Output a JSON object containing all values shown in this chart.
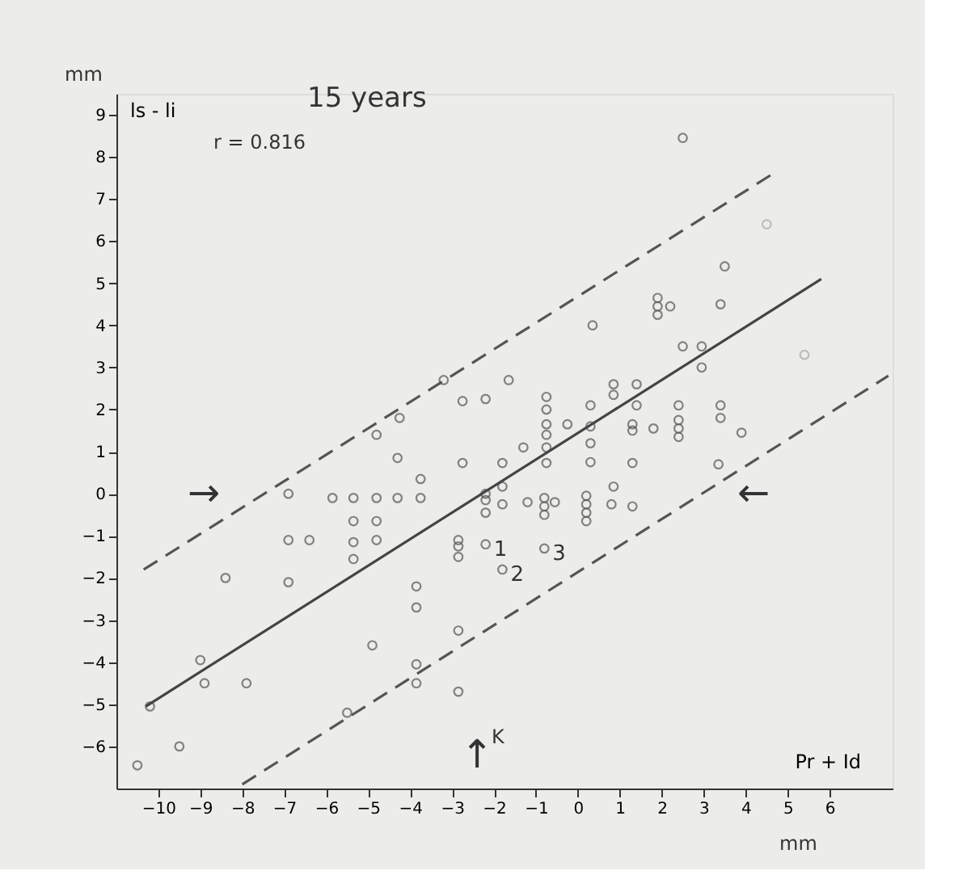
{
  "chart_data": {
    "type": "scatter",
    "title": "15 years",
    "xlabel": "Pr + Id",
    "ylabel": "ls - li",
    "xlim": [
      -11,
      7.5
    ],
    "ylim": [
      -7,
      9.5
    ],
    "xticks": [
      -10,
      -9,
      -8,
      -7,
      -6,
      -5,
      -4,
      -3,
      -2,
      -1,
      0,
      1,
      2,
      3,
      4,
      5,
      6
    ],
    "yticks": [
      -6,
      -5,
      -4,
      -3,
      -2,
      -1,
      0,
      1,
      2,
      3,
      4,
      5,
      6,
      7,
      8,
      9
    ],
    "grid": false,
    "series": [
      {
        "type": "scatter",
        "marker": "circle",
        "color": "#555555",
        "x": [
          -10.5,
          -9.5,
          -10.2,
          -9.0,
          -8.9,
          -7.9,
          -8.4,
          -6.9,
          -6.9,
          -6.9,
          -6.4,
          -5.85,
          -5.35,
          -4.8,
          -4.3,
          -3.75,
          -5.35,
          -5.35,
          -5.35,
          -4.8,
          -4.8,
          -4.3,
          -3.75,
          -4.8,
          -4.25,
          -4.9,
          -3.85,
          -3.85,
          -3.85,
          -3.85,
          -5.5,
          -2.85,
          -2.85,
          -2.85,
          -2.85,
          -2.85,
          -2.75,
          -3.2,
          -2.75,
          -2.2,
          -1.65,
          2.5,
          3.5,
          1.9,
          1.9,
          1.9,
          2.2,
          3.4,
          0.35,
          2.5,
          2.95,
          2.95,
          -0.75,
          -0.75,
          -0.75,
          -0.75,
          -0.25,
          0.3,
          0.3,
          0.3,
          0.3,
          0.85,
          0.85,
          1.4,
          1.4,
          1.3,
          1.3,
          1.8,
          2.4,
          2.4,
          2.4,
          2.4,
          3.4,
          3.4,
          3.9,
          -1.3,
          -0.75,
          -1.8,
          -0.75,
          1.3,
          3.35,
          -1.8,
          0.85,
          -2.2,
          -2.2,
          -2.2,
          -1.8,
          -1.2,
          -0.8,
          -0.8,
          -0.8,
          -0.55,
          0.2,
          0.2,
          0.2,
          0.2,
          0.8,
          1.3,
          -2.2,
          -1.8,
          -0.8
        ],
        "values": [
          -6.45,
          -6.0,
          -5.05,
          -3.95,
          -4.5,
          -4.5,
          -2.0,
          -2.1,
          0,
          -1.1,
          -1.1,
          -0.1,
          -0.1,
          -0.1,
          -0.1,
          -0.1,
          -0.65,
          -1.15,
          -1.55,
          -0.65,
          -1.1,
          0.85,
          0.35,
          1.4,
          1.8,
          -3.6,
          -2.2,
          -2.7,
          -4.05,
          -4.5,
          -5.2,
          -3.25,
          -4.7,
          -1.1,
          -1.25,
          -1.5,
          0.73,
          2.7,
          2.2,
          2.25,
          2.7,
          8.45,
          5.4,
          4.65,
          4.45,
          4.25,
          4.45,
          4.5,
          4.0,
          3.5,
          3.5,
          3.0,
          2.3,
          2.0,
          1.65,
          1.4,
          1.65,
          2.1,
          1.6,
          1.2,
          0.75,
          2.6,
          2.35,
          2.6,
          2.1,
          1.65,
          1.5,
          1.55,
          2.1,
          1.75,
          1.55,
          1.35,
          2.1,
          1.8,
          1.45,
          1.1,
          1.1,
          0.73,
          0.73,
          0.73,
          0.7,
          0.17,
          0.17,
          0,
          -0.15,
          -0.45,
          -0.25,
          -0.2,
          -0.1,
          -0.3,
          -0.5,
          -0.2,
          -0.05,
          -0.25,
          -0.45,
          -0.65,
          -0.25,
          -0.3,
          -1.2,
          -1.8,
          -1.3
        ]
      },
      {
        "type": "scatter",
        "marker": "circle",
        "color": "#aaaaaa",
        "x": [
          4.5,
          5.4
        ],
        "values": [
          6.4,
          3.3
        ]
      },
      {
        "type": "line",
        "color": "#444444",
        "line_style": "solid",
        "x": [
          -10.3,
          5.8
        ],
        "values": [
          -5.05,
          5.1
        ]
      },
      {
        "type": "line",
        "color": "#555555",
        "line_style": "dashed",
        "x": [
          -10.35,
          4.65
        ],
        "values": [
          -1.8,
          7.6
        ]
      },
      {
        "type": "line",
        "color": "#555555",
        "line_style": "dashed",
        "x": [
          -8.0,
          7.4
        ],
        "values": [
          -6.9,
          2.8
        ]
      }
    ],
    "annotations": [
      "r = 0.816",
      "mm",
      "mm",
      "→",
      "←",
      "↑",
      "K",
      {
        "text": "1",
        "x": -2.2,
        "y": -1.2
      },
      {
        "text": "2",
        "x": -1.8,
        "y": -1.8
      },
      {
        "text": "3",
        "x": -0.8,
        "y": -1.3
      }
    ]
  }
}
